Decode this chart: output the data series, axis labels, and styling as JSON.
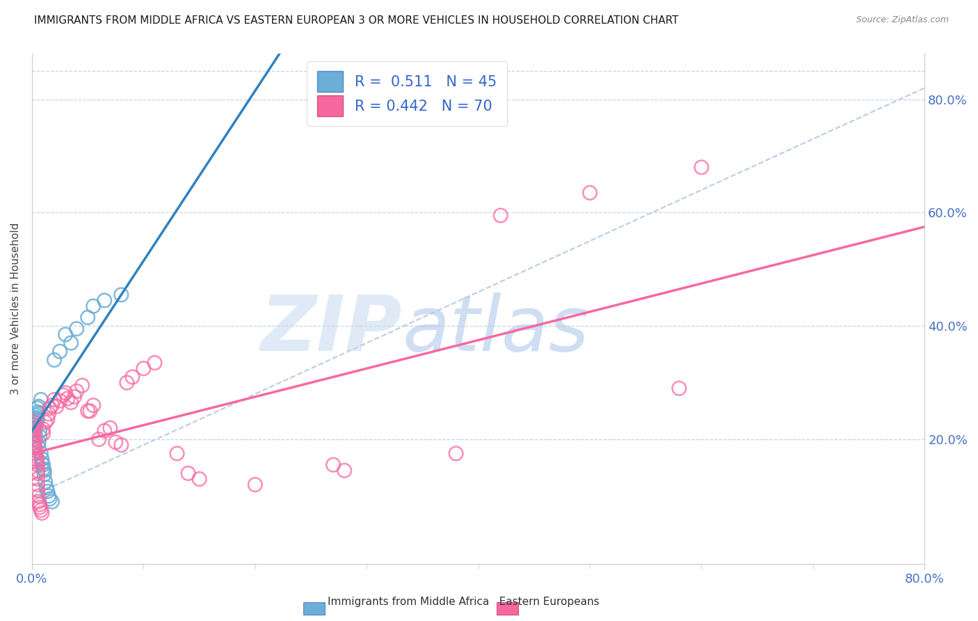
{
  "title": "IMMIGRANTS FROM MIDDLE AFRICA VS EASTERN EUROPEAN 3 OR MORE VEHICLES IN HOUSEHOLD CORRELATION CHART",
  "source": "Source: ZipAtlas.com",
  "ylabel": "3 or more Vehicles in Household",
  "ytick_labels": [
    "20.0%",
    "40.0%",
    "60.0%",
    "80.0%"
  ],
  "ytick_values": [
    0.2,
    0.4,
    0.6,
    0.8
  ],
  "xlim": [
    0.0,
    0.8
  ],
  "ylim": [
    -0.02,
    0.88
  ],
  "blue_color": "#6baed6",
  "pink_color": "#f768a1",
  "blue_line_color": "#3182bd",
  "pink_line_color": "#f768a1",
  "dashed_line_color": "#b8cce4",
  "blue_scatter": [
    [
      0.001,
      0.215
    ],
    [
      0.001,
      0.22
    ],
    [
      0.001,
      0.21
    ],
    [
      0.002,
      0.225
    ],
    [
      0.002,
      0.23
    ],
    [
      0.002,
      0.235
    ],
    [
      0.003,
      0.218
    ],
    [
      0.003,
      0.208
    ],
    [
      0.003,
      0.2
    ],
    [
      0.004,
      0.242
    ],
    [
      0.004,
      0.238
    ],
    [
      0.004,
      0.228
    ],
    [
      0.005,
      0.255
    ],
    [
      0.005,
      0.245
    ],
    [
      0.005,
      0.235
    ],
    [
      0.005,
      0.248
    ],
    [
      0.006,
      0.258
    ],
    [
      0.006,
      0.195
    ],
    [
      0.006,
      0.185
    ],
    [
      0.007,
      0.205
    ],
    [
      0.007,
      0.215
    ],
    [
      0.008,
      0.27
    ],
    [
      0.008,
      0.175
    ],
    [
      0.009,
      0.165
    ],
    [
      0.009,
      0.158
    ],
    [
      0.01,
      0.155
    ],
    [
      0.01,
      0.148
    ],
    [
      0.011,
      0.145
    ],
    [
      0.011,
      0.138
    ],
    [
      0.012,
      0.125
    ],
    [
      0.013,
      0.115
    ],
    [
      0.014,
      0.108
    ],
    [
      0.015,
      0.1
    ],
    [
      0.016,
      0.095
    ],
    [
      0.018,
      0.09
    ],
    [
      0.02,
      0.34
    ],
    [
      0.025,
      0.355
    ],
    [
      0.03,
      0.385
    ],
    [
      0.035,
      0.37
    ],
    [
      0.04,
      0.395
    ],
    [
      0.05,
      0.415
    ],
    [
      0.055,
      0.435
    ],
    [
      0.065,
      0.445
    ],
    [
      0.08,
      0.455
    ]
  ],
  "pink_scatter": [
    [
      0.001,
      0.21
    ],
    [
      0.001,
      0.205
    ],
    [
      0.001,
      0.2
    ],
    [
      0.002,
      0.215
    ],
    [
      0.002,
      0.22
    ],
    [
      0.002,
      0.225
    ],
    [
      0.002,
      0.23
    ],
    [
      0.002,
      0.195
    ],
    [
      0.002,
      0.19
    ],
    [
      0.003,
      0.185
    ],
    [
      0.003,
      0.18
    ],
    [
      0.003,
      0.175
    ],
    [
      0.004,
      0.17
    ],
    [
      0.004,
      0.165
    ],
    [
      0.004,
      0.16
    ],
    [
      0.005,
      0.155
    ],
    [
      0.005,
      0.145
    ],
    [
      0.005,
      0.14
    ],
    [
      0.005,
      0.13
    ],
    [
      0.005,
      0.12
    ],
    [
      0.005,
      0.11
    ],
    [
      0.006,
      0.1
    ],
    [
      0.006,
      0.09
    ],
    [
      0.007,
      0.085
    ],
    [
      0.007,
      0.08
    ],
    [
      0.008,
      0.075
    ],
    [
      0.009,
      0.07
    ],
    [
      0.01,
      0.218
    ],
    [
      0.01,
      0.21
    ],
    [
      0.012,
      0.23
    ],
    [
      0.014,
      0.235
    ],
    [
      0.015,
      0.245
    ],
    [
      0.016,
      0.255
    ],
    [
      0.018,
      0.26
    ],
    [
      0.02,
      0.27
    ],
    [
      0.022,
      0.258
    ],
    [
      0.025,
      0.268
    ],
    [
      0.028,
      0.278
    ],
    [
      0.03,
      0.282
    ],
    [
      0.032,
      0.272
    ],
    [
      0.035,
      0.265
    ],
    [
      0.038,
      0.275
    ],
    [
      0.04,
      0.285
    ],
    [
      0.045,
      0.295
    ],
    [
      0.05,
      0.25
    ],
    [
      0.052,
      0.25
    ],
    [
      0.055,
      0.26
    ],
    [
      0.06,
      0.2
    ],
    [
      0.065,
      0.215
    ],
    [
      0.07,
      0.22
    ],
    [
      0.075,
      0.195
    ],
    [
      0.08,
      0.19
    ],
    [
      0.085,
      0.3
    ],
    [
      0.09,
      0.31
    ],
    [
      0.1,
      0.325
    ],
    [
      0.11,
      0.335
    ],
    [
      0.13,
      0.175
    ],
    [
      0.14,
      0.14
    ],
    [
      0.15,
      0.13
    ],
    [
      0.2,
      0.12
    ],
    [
      0.27,
      0.155
    ],
    [
      0.28,
      0.145
    ],
    [
      0.38,
      0.175
    ],
    [
      0.42,
      0.595
    ],
    [
      0.5,
      0.635
    ],
    [
      0.58,
      0.29
    ],
    [
      0.6,
      0.68
    ]
  ],
  "watermark_zip_color": "#c6d9f0",
  "watermark_atlas_color": "#a8c4e8",
  "watermark_alpha": 0.55
}
